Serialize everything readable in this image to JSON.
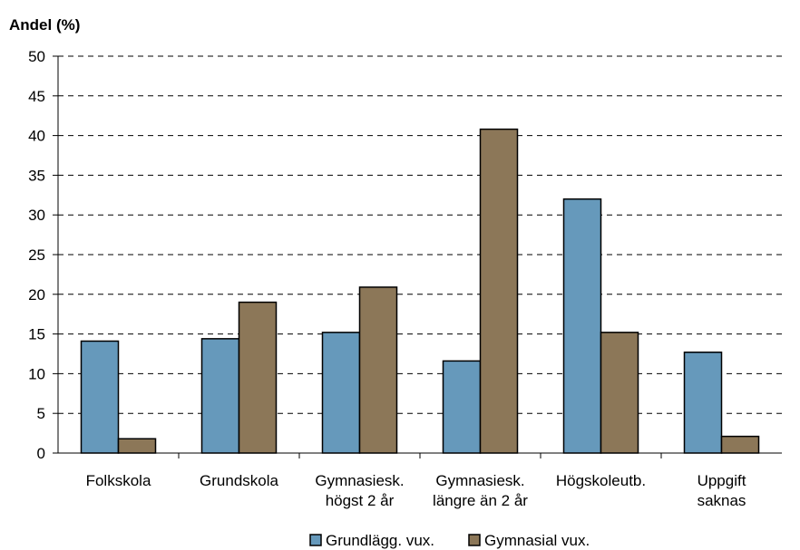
{
  "chart_data": {
    "type": "bar",
    "ylabel": "Andel (%)",
    "xlabel": "",
    "title": "",
    "ylim": [
      0,
      50
    ],
    "ytick_step": 5,
    "yticks": [
      "0",
      "5",
      "10",
      "15",
      "20",
      "25",
      "30",
      "35",
      "40",
      "45",
      "50"
    ],
    "grid": "horizontal-dashed",
    "legend_position": "bottom",
    "categories": [
      [
        "Folkskola"
      ],
      [
        "Grundskola"
      ],
      [
        "Gymnasiesk.",
        "högst 2 år"
      ],
      [
        "Gymnasiesk.",
        "längre än 2 år"
      ],
      [
        "Högskoleutb."
      ],
      [
        "Uppgift",
        "saknas"
      ]
    ],
    "series": [
      {
        "name": "Grundlägg. vux.",
        "color": "#6699bb",
        "values": [
          14.1,
          14.4,
          15.2,
          11.6,
          32.0,
          12.7
        ]
      },
      {
        "name": "Gymnasial vux.",
        "color": "#8c7758",
        "values": [
          1.8,
          19.0,
          20.9,
          40.8,
          15.2,
          2.1
        ]
      }
    ]
  }
}
